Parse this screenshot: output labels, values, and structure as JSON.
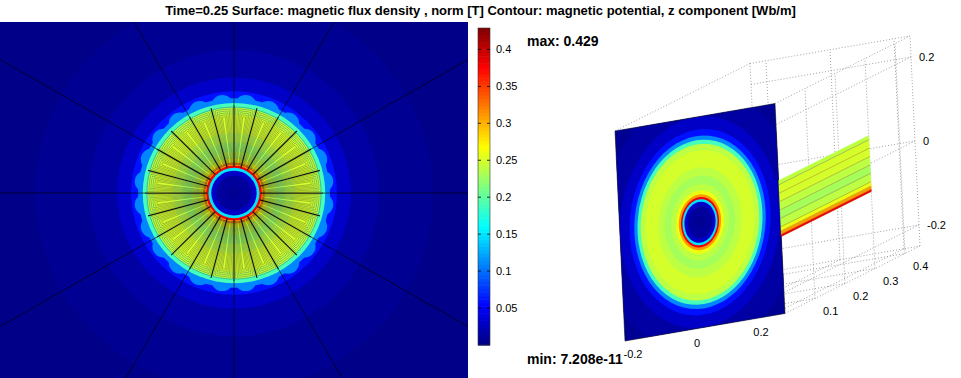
{
  "chart_data": [
    {
      "type": "field",
      "title": "Time=0.25 Surface: magnetic flux density , norm [T] Contour: magnetic potential, z component [Wb/m]",
      "xlim": [
        -0.5,
        0.5
      ],
      "ylim": [
        -0.4,
        0.37
      ],
      "tick_labels": false,
      "poles": 24,
      "radial_profile": {
        "r": [
          0,
          0.03,
          0.045,
          0.052,
          0.057,
          0.062,
          0.07,
          0.08,
          0.1,
          0.12,
          0.14,
          0.16,
          0.18,
          0.19,
          0.2,
          0.21,
          0.23,
          0.27,
          0.35,
          0.5
        ],
        "b": [
          0.008,
          0.012,
          0.03,
          0.15,
          0.38,
          0.31,
          0.26,
          0.24,
          0.23,
          0.24,
          0.25,
          0.25,
          0.24,
          0.19,
          0.11,
          0.06,
          0.03,
          0.015,
          0.008,
          0.004
        ]
      },
      "colorbar_ticks": [
        0.05,
        0.1,
        0.15,
        0.2,
        0.25,
        0.3,
        0.35,
        0.4
      ],
      "max": {
        "value": 0.429,
        "label": "max: 0.429"
      },
      "min": {
        "value": 7.208e-11,
        "label": "min: 7.208e-11"
      }
    },
    {
      "type": "surface3d",
      "xlim": [
        -0.25,
        0.25
      ],
      "ylim": [
        0,
        0.45
      ],
      "zlim": [
        -0.25,
        0.25
      ],
      "xticks": [
        -0.2,
        0,
        0.2
      ],
      "yticks": [
        0.1,
        0.2,
        0.3,
        0.4
      ],
      "zticks": [
        -0.2,
        0,
        0.2
      ],
      "grid": true
    }
  ]
}
